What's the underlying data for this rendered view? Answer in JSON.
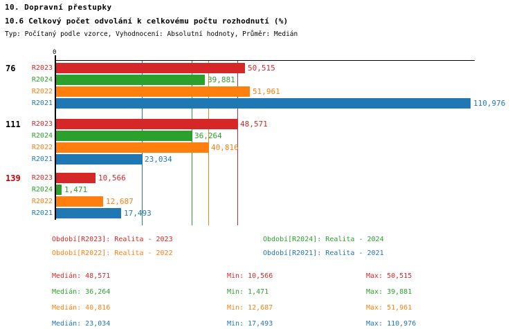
{
  "header": {
    "title": "10. Dopravní přestupky",
    "subtitle": "10.6 Celkový počet odvolání k celkovému počtu rozhodnutí (%)",
    "meta": "Typ: Počítaný podle vzorce, Vyhodnocení: Absolutní hodnoty, Průměr: Medián"
  },
  "colors": {
    "series": {
      "R2023": "#d62728",
      "R2024": "#2ca02c",
      "R2022": "#ff7f0e",
      "R2021": "#1f77b4"
    },
    "axis": "#000000",
    "group_label_normal": "#000000",
    "group_label_alert": "#cc0000",
    "background": "#ffffff"
  },
  "chart_data": {
    "type": "bar",
    "orientation": "horizontal",
    "axis_zero_label": "0",
    "xlim": [
      0,
      110976
    ],
    "grid": "median-lines-per-series",
    "series_order": [
      "R2023",
      "R2024",
      "R2022",
      "R2021"
    ],
    "groups": [
      {
        "label": "76",
        "label_style": "normal",
        "values": {
          "R2023": 50515,
          "R2024": 39881,
          "R2022": 51961,
          "R2021": 110976
        }
      },
      {
        "label": "111",
        "label_style": "normal",
        "values": {
          "R2023": 48571,
          "R2024": 36264,
          "R2022": 40816,
          "R2021": 23034
        }
      },
      {
        "label": "139",
        "label_style": "alert",
        "values": {
          "R2023": 10566,
          "R2024": 1471,
          "R2022": 12687,
          "R2021": 17493
        }
      }
    ],
    "medians": {
      "R2023": 48571,
      "R2024": 36264,
      "R2022": 40816,
      "R2021": 23034
    }
  },
  "legend": {
    "items": [
      {
        "series": "R2023",
        "text": "Období[R2023]: Realita - 2023",
        "col": 0,
        "row": 0
      },
      {
        "series": "R2024",
        "text": "Období[R2024]: Realita - 2024",
        "col": 1,
        "row": 0
      },
      {
        "series": "R2022",
        "text": "Období[R2022]: Realita - 2022",
        "col": 0,
        "row": 1
      },
      {
        "series": "R2021",
        "text": "Období[R2021]: Realita - 2021",
        "col": 1,
        "row": 1
      }
    ]
  },
  "stats": {
    "labels": {
      "median": "Medián",
      "min": "Min",
      "max": "Max"
    },
    "rows": [
      {
        "series": "R2023",
        "median": 48571,
        "min": 10566,
        "max": 50515
      },
      {
        "series": "R2024",
        "median": 36264,
        "min": 1471,
        "max": 39881
      },
      {
        "series": "R2022",
        "median": 40816,
        "min": 12687,
        "max": 51961
      },
      {
        "series": "R2021",
        "median": 23034,
        "min": 17493,
        "max": 110976
      }
    ]
  }
}
